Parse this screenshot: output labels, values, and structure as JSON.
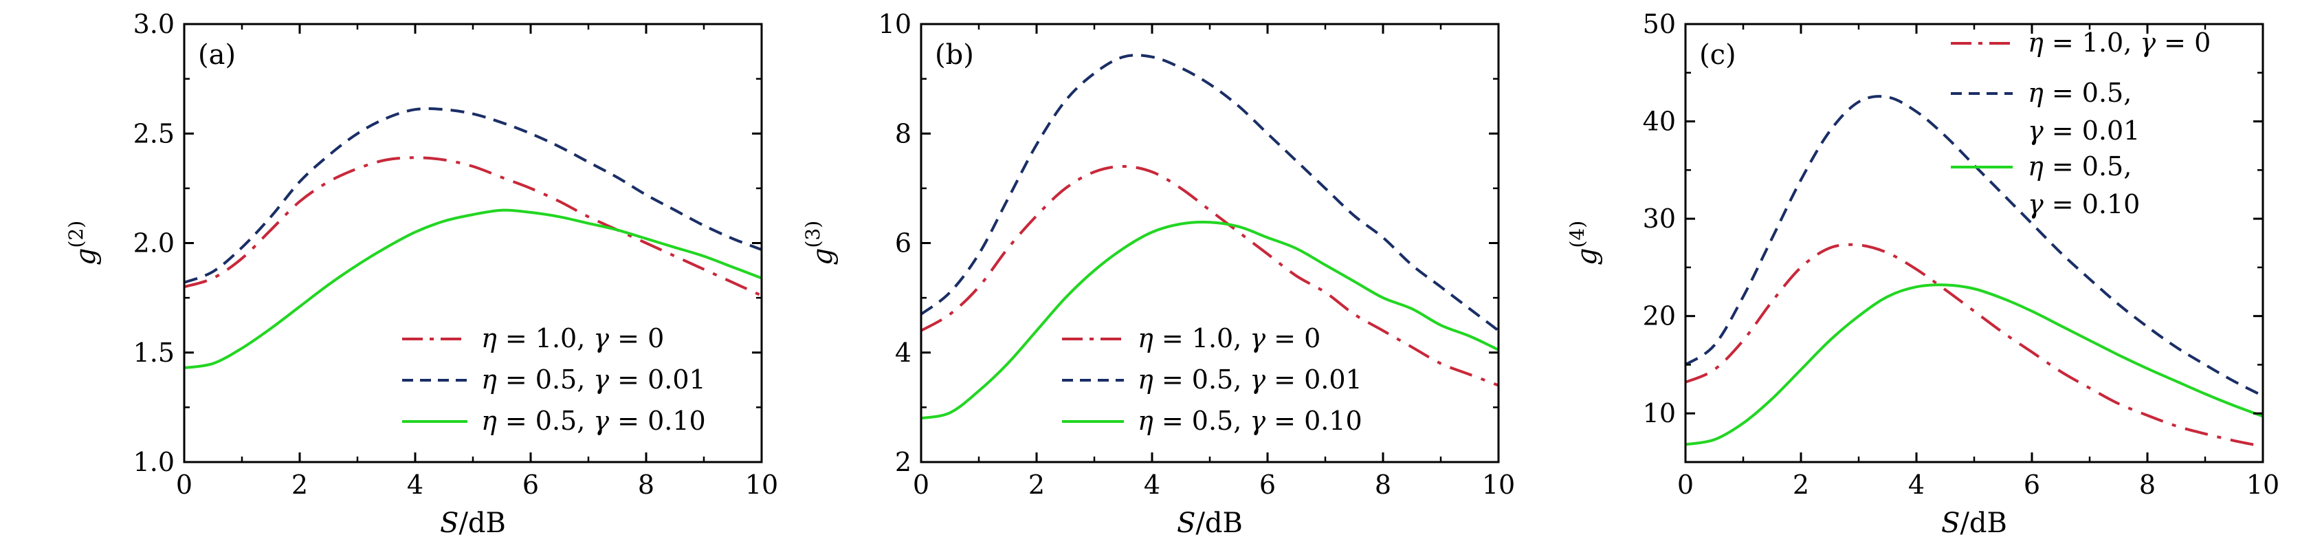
{
  "colors": {
    "red": "#c8283a",
    "navy": "#1a2e66",
    "green": "#22d622"
  },
  "chart_data": [
    {
      "type": "line",
      "panel_label": "(a)",
      "xlabel": "S/dB",
      "ylabel": "g(2)",
      "ylabel_base": "g",
      "ylabel_sup": "(2)",
      "xlim": [
        0,
        10
      ],
      "ylim": [
        1.0,
        3.0
      ],
      "xticks": [
        0,
        2,
        4,
        6,
        8,
        10
      ],
      "yticks": [
        1.0,
        1.5,
        2.0,
        2.5,
        3.0
      ],
      "ytick_labels": [
        "1.0",
        "1.5",
        "2.0",
        "2.5",
        "3.0"
      ],
      "legend_position": "bottom-right",
      "grid": false,
      "series": [
        {
          "name": "η = 1.0,  γ = 0",
          "style": "dash-dot",
          "color": "#c8283a",
          "x": [
            0,
            0.5,
            1,
            1.5,
            2,
            2.5,
            3,
            3.5,
            4,
            4.5,
            5,
            5.5,
            6,
            6.5,
            7,
            7.5,
            8,
            8.5,
            9,
            9.5,
            10
          ],
          "y": [
            1.8,
            1.84,
            1.93,
            2.06,
            2.19,
            2.28,
            2.34,
            2.38,
            2.39,
            2.38,
            2.35,
            2.3,
            2.25,
            2.19,
            2.12,
            2.06,
            2.0,
            1.94,
            1.88,
            1.82,
            1.76
          ]
        },
        {
          "name": "η = 0.5,  γ = 0.01",
          "style": "dashed",
          "color": "#1a2e66",
          "x": [
            0,
            0.5,
            1,
            1.5,
            2,
            2.5,
            3,
            3.5,
            4,
            4.5,
            5,
            5.5,
            6,
            6.5,
            7,
            7.5,
            8,
            8.5,
            9,
            9.5,
            10
          ],
          "y": [
            1.82,
            1.87,
            1.98,
            2.12,
            2.28,
            2.4,
            2.5,
            2.57,
            2.61,
            2.61,
            2.59,
            2.55,
            2.5,
            2.44,
            2.37,
            2.3,
            2.22,
            2.15,
            2.08,
            2.02,
            1.97
          ]
        },
        {
          "name": "η = 0.5,  γ = 0.10",
          "style": "solid",
          "color": "#22d622",
          "x": [
            0,
            0.5,
            1,
            1.5,
            2,
            2.5,
            3,
            3.5,
            4,
            4.5,
            5,
            5.5,
            6,
            6.5,
            7,
            7.5,
            8,
            8.5,
            9,
            9.5,
            10
          ],
          "y": [
            1.43,
            1.45,
            1.52,
            1.61,
            1.71,
            1.81,
            1.9,
            1.98,
            2.05,
            2.1,
            2.13,
            2.15,
            2.14,
            2.12,
            2.09,
            2.06,
            2.02,
            1.98,
            1.94,
            1.89,
            1.84
          ]
        }
      ]
    },
    {
      "type": "line",
      "panel_label": "(b)",
      "xlabel": "S/dB",
      "ylabel": "g(3)",
      "ylabel_base": "g",
      "ylabel_sup": "(3)",
      "xlim": [
        0,
        10
      ],
      "ylim": [
        2,
        10
      ],
      "xticks": [
        0,
        2,
        4,
        6,
        8,
        10
      ],
      "yticks": [
        2,
        4,
        6,
        8,
        10
      ],
      "ytick_labels": [
        "2",
        "4",
        "6",
        "8",
        "10"
      ],
      "legend_position": "bottom-right",
      "grid": false,
      "series": [
        {
          "name": "η = 1.0,  γ = 0",
          "style": "dash-dot",
          "color": "#c8283a",
          "x": [
            0,
            0.5,
            1,
            1.5,
            2,
            2.5,
            3,
            3.5,
            4,
            4.5,
            5,
            5.5,
            6,
            6.5,
            7,
            7.5,
            8,
            8.5,
            9,
            9.5,
            10
          ],
          "y": [
            4.4,
            4.7,
            5.2,
            5.9,
            6.5,
            7.0,
            7.3,
            7.4,
            7.3,
            7.0,
            6.6,
            6.2,
            5.8,
            5.4,
            5.1,
            4.7,
            4.4,
            4.1,
            3.8,
            3.6,
            3.4
          ]
        },
        {
          "name": "η = 0.5,  γ = 0.01",
          "style": "dashed",
          "color": "#1a2e66",
          "x": [
            0,
            0.5,
            1,
            1.5,
            2,
            2.5,
            3,
            3.5,
            4,
            4.5,
            5,
            5.5,
            6,
            6.5,
            7,
            7.5,
            8,
            8.5,
            9,
            9.5,
            10
          ],
          "y": [
            4.7,
            5.1,
            5.8,
            6.8,
            7.8,
            8.6,
            9.1,
            9.4,
            9.4,
            9.2,
            8.9,
            8.5,
            8.0,
            7.5,
            7.0,
            6.5,
            6.1,
            5.6,
            5.2,
            4.8,
            4.4
          ]
        },
        {
          "name": "η = 0.5,  γ = 0.10",
          "style": "solid",
          "color": "#22d622",
          "x": [
            0,
            0.5,
            1,
            1.5,
            2,
            2.5,
            3,
            3.5,
            4,
            4.5,
            5,
            5.5,
            6,
            6.5,
            7,
            7.5,
            8,
            8.5,
            9,
            9.5,
            10
          ],
          "y": [
            2.8,
            2.9,
            3.3,
            3.8,
            4.4,
            5.0,
            5.5,
            5.9,
            6.2,
            6.35,
            6.38,
            6.3,
            6.1,
            5.9,
            5.6,
            5.3,
            5.0,
            4.8,
            4.5,
            4.3,
            4.05
          ]
        }
      ]
    },
    {
      "type": "line",
      "panel_label": "(c)",
      "xlabel": "S/dB",
      "ylabel": "g(4)",
      "ylabel_base": "g",
      "ylabel_sup": "(4)",
      "xlim": [
        0,
        10
      ],
      "ylim": [
        5,
        50
      ],
      "xticks": [
        0,
        2,
        4,
        6,
        8,
        10
      ],
      "yticks": [
        10,
        20,
        30,
        40,
        50
      ],
      "ytick_labels": [
        "10",
        "20",
        "30",
        "40",
        "50"
      ],
      "legend_position": "top-right",
      "grid": false,
      "series": [
        {
          "name": "η = 1.0,  γ = 0",
          "style": "dash-dot",
          "color": "#c8283a",
          "x": [
            0,
            0.5,
            1,
            1.5,
            2,
            2.5,
            3,
            3.5,
            4,
            4.5,
            5,
            5.5,
            6,
            6.5,
            7,
            7.5,
            8,
            8.5,
            9,
            9.5,
            10
          ],
          "y": [
            13.2,
            14.5,
            17.5,
            21.5,
            25.0,
            27.0,
            27.3,
            26.5,
            24.8,
            22.7,
            20.5,
            18.3,
            16.3,
            14.3,
            12.6,
            11.0,
            9.8,
            8.7,
            7.9,
            7.2,
            6.6
          ]
        },
        {
          "name": "η = 0.5,\nγ = 0.01",
          "style": "dashed",
          "color": "#1a2e66",
          "x": [
            0,
            0.5,
            1,
            1.5,
            2,
            2.5,
            3,
            3.5,
            4,
            4.5,
            5,
            5.5,
            6,
            6.5,
            7,
            7.5,
            8,
            8.5,
            9,
            9.5,
            10
          ],
          "y": [
            15.0,
            17.0,
            22.0,
            28.0,
            34.0,
            39.0,
            42.0,
            42.5,
            41.0,
            38.5,
            35.5,
            32.5,
            29.5,
            26.5,
            23.8,
            21.2,
            18.9,
            16.8,
            15.0,
            13.3,
            11.8
          ]
        },
        {
          "name": "η = 0.5,\nγ = 0.10",
          "style": "solid",
          "color": "#22d622",
          "x": [
            0,
            0.5,
            1,
            1.5,
            2,
            2.5,
            3,
            3.5,
            4,
            4.5,
            5,
            5.5,
            6,
            6.5,
            7,
            7.5,
            8,
            8.5,
            9,
            9.5,
            10
          ],
          "y": [
            6.8,
            7.3,
            9.0,
            11.5,
            14.5,
            17.5,
            20.0,
            22.0,
            23.0,
            23.2,
            22.8,
            21.8,
            20.5,
            19.0,
            17.5,
            16.0,
            14.6,
            13.3,
            12.0,
            10.8,
            9.7
          ]
        }
      ]
    }
  ]
}
